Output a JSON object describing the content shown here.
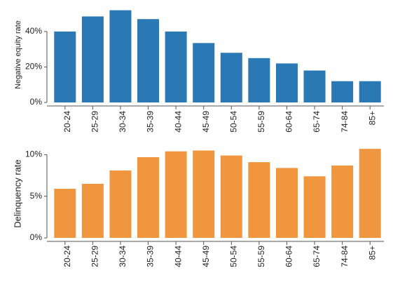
{
  "chart_data": [
    {
      "type": "bar",
      "categories": [
        "20-24",
        "25-29",
        "30-34",
        "35-39",
        "40-44",
        "45-49",
        "50-54",
        "55-59",
        "60-64",
        "65-74",
        "74-84",
        "85+"
      ],
      "values": [
        40,
        48.5,
        52,
        47,
        40,
        33.5,
        28,
        25,
        22,
        18,
        12,
        12
      ],
      "title": "",
      "xlabel": "",
      "ylabel": "Negative equity rate",
      "ylim": [
        0,
        55
      ],
      "yticks": [
        0,
        20,
        40
      ],
      "ytick_labels": [
        "0%",
        "20%",
        "40%"
      ],
      "color": "#2a78b4",
      "grid": false
    },
    {
      "type": "bar",
      "categories": [
        "20-24",
        "25-29",
        "30-34",
        "35-39",
        "40-44",
        "45-49",
        "50-54",
        "55-59",
        "60-64",
        "65-74",
        "74-84",
        "85+"
      ],
      "values": [
        5.9,
        6.5,
        8.1,
        9.7,
        10.4,
        10.5,
        9.9,
        9.1,
        8.4,
        7.4,
        8.7,
        10.7
      ],
      "title": "",
      "xlabel": "",
      "ylabel": "Delinquency rate",
      "ylim": [
        0,
        11.3
      ],
      "yticks": [
        0,
        5,
        10
      ],
      "ytick_labels": [
        "0%",
        "5%",
        "10%"
      ],
      "color": "#f0963f",
      "grid": false
    }
  ]
}
